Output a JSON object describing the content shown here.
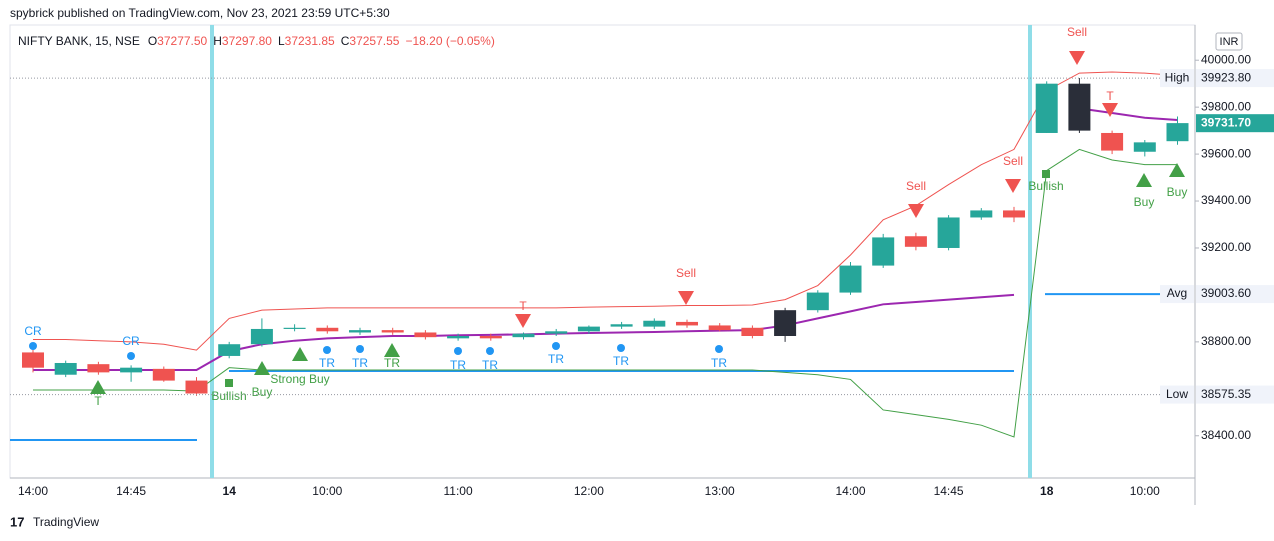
{
  "chart_data": {
    "type": "candlestick",
    "byline": "spybrick published on TradingView.com, Nov 23, 2021 23:59 UTC+5:30",
    "symbol": "NIFTY BANK, 15, NSE",
    "legend": [
      {
        "key": "O",
        "value": "37277.50"
      },
      {
        "key": "H",
        "value": "37297.80"
      },
      {
        "key": "L",
        "value": "37231.85"
      },
      {
        "key": "C",
        "value": "37257.55"
      }
    ],
    "change": "−18.20 (−0.05%)",
    "currency": "INR",
    "brand": "TradingView",
    "categories": [
      "14:00",
      null,
      null,
      "14:45",
      null,
      null,
      "14",
      null,
      null,
      "10:00",
      null,
      null,
      null,
      "11:00",
      null,
      null,
      null,
      "12:00",
      null,
      null,
      null,
      "13:00",
      null,
      null,
      null,
      "14:00",
      null,
      null,
      "14:45",
      null,
      null,
      "18",
      null,
      null,
      "10:00",
      null
    ],
    "bold_categories": [
      "14",
      "18"
    ],
    "open": [
      38755,
      38660,
      38705,
      38670,
      38685,
      38635,
      38740,
      38790,
      38855,
      38860,
      38840,
      38850,
      38840,
      38815,
      38825,
      38820,
      38835,
      38845,
      38865,
      38865,
      38885,
      38870,
      38860,
      38825,
      38935,
      39010,
      39125,
      39250,
      39200,
      39330,
      39360,
      39690,
      39900,
      39690,
      39610,
      39655
    ],
    "high": [
      38770,
      38720,
      38715,
      38700,
      38695,
      38650,
      38800,
      38900,
      38875,
      38870,
      38860,
      38860,
      38850,
      38835,
      38835,
      38840,
      38855,
      38870,
      38885,
      38900,
      38895,
      38880,
      38870,
      38945,
      39020,
      39140,
      39260,
      39265,
      39340,
      39370,
      39375,
      39910,
      39924,
      39700,
      39660,
      39760
    ],
    "low": [
      38670,
      38650,
      38660,
      38630,
      38630,
      38570,
      38730,
      38780,
      38845,
      38835,
      38830,
      38830,
      38810,
      38805,
      38805,
      38810,
      38825,
      38835,
      38855,
      38855,
      38860,
      38845,
      38815,
      38800,
      38925,
      39000,
      39115,
      39190,
      39190,
      39320,
      39310,
      39690,
      39690,
      39600,
      39590,
      39640
    ],
    "close": [
      38690,
      38710,
      38670,
      38690,
      38635,
      38580,
      38790,
      38855,
      38860,
      38845,
      38850,
      38840,
      38820,
      38825,
      38815,
      38835,
      38845,
      38865,
      38875,
      38890,
      38870,
      38850,
      38825,
      38935,
      39010,
      39125,
      39245,
      39205,
      39330,
      39360,
      39330,
      39900,
      39700,
      39615,
      39650,
      39732
    ],
    "up_color": "#26a69a",
    "down_color": "#ef5350",
    "highlight_color": "#2a2e39",
    "highlight": [
      23,
      32
    ],
    "lines": [
      {
        "color": "#9c27b0",
        "values": [
          38680,
          38680,
          38680,
          38680,
          38680,
          38680,
          38760,
          38790,
          38805,
          38815,
          38820,
          38825,
          38825,
          38828,
          38830,
          38832,
          38835,
          38838,
          38840,
          38842,
          38845,
          38848,
          38850,
          38870,
          38900,
          38930,
          38960,
          38970,
          38980,
          38990,
          39000,
          null,
          39795,
          39775,
          39755,
          39745
        ]
      },
      {
        "color": "#ef5350",
        "values": [
          38810,
          38810,
          38805,
          38800,
          38790,
          38765,
          38900,
          38935,
          38940,
          38945,
          38945,
          38945,
          38945,
          38945,
          38945,
          38945,
          38945,
          38948,
          38950,
          38952,
          38955,
          38955,
          38957,
          38980,
          39040,
          39170,
          39320,
          39380,
          39470,
          39555,
          39620,
          39870,
          39945,
          39950,
          39945,
          39935
        ]
      },
      {
        "color": "#43a047",
        "values": [
          38595,
          38595,
          38595,
          38595,
          38595,
          38590,
          38690,
          38680,
          38680,
          38680,
          38680,
          38680,
          38680,
          38680,
          38680,
          38680,
          38680,
          38680,
          38680,
          38680,
          38680,
          38680,
          38680,
          38670,
          38660,
          38640,
          38510,
          38490,
          38470,
          38445,
          38395,
          39530,
          39620,
          39575,
          39555,
          39555
        ]
      }
    ],
    "ylim": [
      38220,
      40150
    ],
    "yticks": [
      {
        "value": 38400,
        "label": "38400.00"
      },
      {
        "value": 38800,
        "label": "38800.00"
      },
      {
        "value": 39200,
        "label": "39200.00"
      },
      {
        "value": 39400,
        "label": "39400.00"
      },
      {
        "value": 39600,
        "label": "39600.00"
      },
      {
        "value": 39800,
        "label": "39800.00"
      },
      {
        "value": 40000,
        "label": "40000.00"
      }
    ],
    "price_tags": [
      {
        "name": "High",
        "value": 39923.8,
        "label": "39923.80"
      },
      {
        "name": "Avg",
        "value": 39003.6,
        "label": "39003.60"
      },
      {
        "name": "Low",
        "value": 38575.35,
        "label": "38575.35"
      },
      {
        "value": 39731.7,
        "label": "39731.70"
      }
    ],
    "annotations": [
      "CR",
      "CR",
      "T",
      "Bullish",
      "Buy",
      "Strong Buy",
      "TR",
      "TR",
      "TR",
      "TR",
      "TR",
      "TR",
      "TR",
      "TR",
      "T",
      "Sell",
      "Sell",
      "Sell",
      "Bullish",
      "Sell",
      "T",
      "Buy",
      "Buy"
    ]
  }
}
